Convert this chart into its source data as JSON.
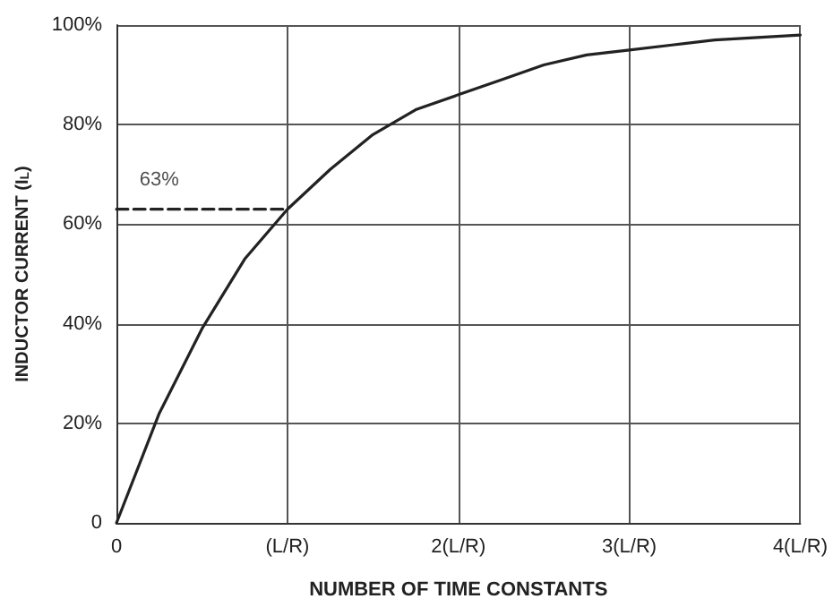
{
  "chart_data": {
    "type": "line",
    "xlabel": "NUMBER OF TIME CONSTANTS",
    "ylabel": "INDUCTOR CURRENT (I$_{L}$)",
    "xlim": [
      0,
      4
    ],
    "ylim": [
      0,
      100
    ],
    "xticks": [
      0,
      {
        "value": 1,
        "label": "(L/R)"
      },
      {
        "value": 2,
        "label": "2(L/R)"
      },
      {
        "value": 3,
        "label": "3(L/R)"
      },
      {
        "value": 4,
        "label": "4(L/R)"
      }
    ],
    "yticks": [
      0,
      {
        "value": 20,
        "label": "20%"
      },
      {
        "value": 40,
        "label": "40%"
      },
      {
        "value": 60,
        "label": "60%"
      },
      {
        "value": 80,
        "label": "80%"
      },
      {
        "value": 100,
        "label": "100%"
      }
    ],
    "grid": true,
    "marker": "none",
    "line_style": "solid",
    "series": [
      {
        "color": "#222222",
        "x": [
          0,
          0.25,
          0.5,
          0.75,
          1,
          1.25,
          1.5,
          1.75,
          2,
          2.25,
          2.5,
          2.75,
          3,
          3.25,
          3.5,
          3.75,
          4
        ],
        "values": [
          0,
          22,
          39,
          53,
          63,
          71,
          78,
          83,
          86,
          89,
          92,
          94,
          95,
          96,
          97,
          97.5,
          98
        ]
      },
      {
        "color": "#222222",
        "line_style": "dashed",
        "x": [
          0,
          1
        ],
        "values": [
          63,
          63
        ]
      }
    ],
    "annotations": [
      {
        "text": "63%",
        "x": 0.25,
        "y": 63
      }
    ]
  }
}
